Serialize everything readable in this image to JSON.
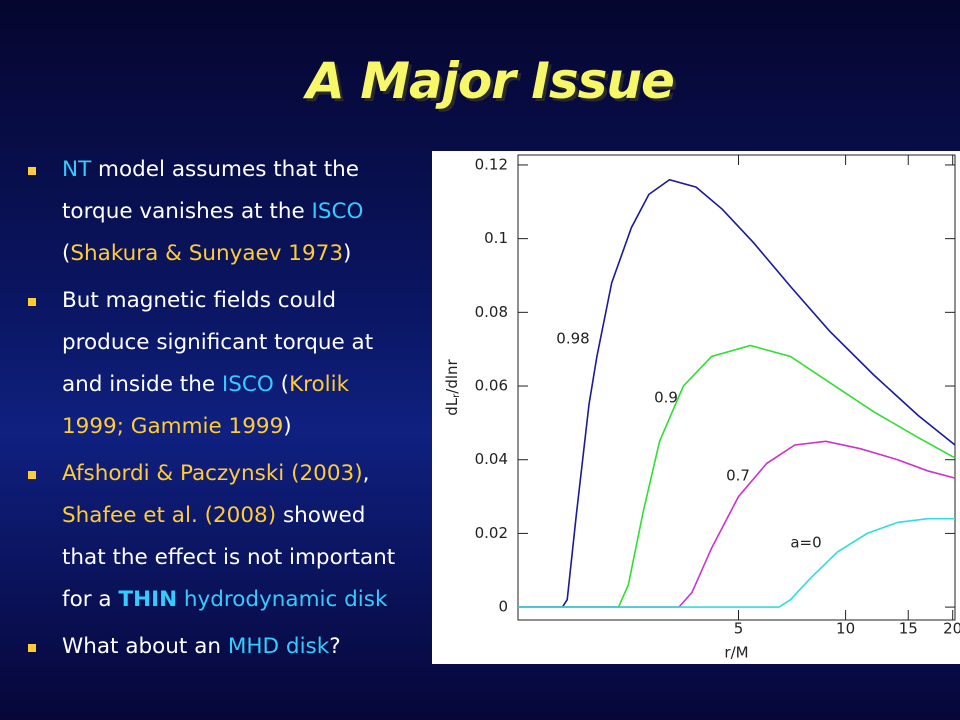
{
  "slide": {
    "title": "A Major Issue",
    "bullets": [
      {
        "lines": [
          [
            {
              "text": "NT",
              "color": "#33ccff"
            },
            {
              "text": " model assumes that the",
              "color": "#ffffff"
            }
          ],
          [
            {
              "text": "torque vanishes at the ",
              "color": "#ffffff"
            },
            {
              "text": "ISCO",
              "color": "#33ccff"
            }
          ],
          [
            {
              "text": "(",
              "color": "#ffffff"
            },
            {
              "text": "Shakura & Sunyaev 1973",
              "color": "#ffcc33"
            },
            {
              "text": ")",
              "color": "#ffffff"
            }
          ]
        ]
      },
      {
        "lines": [
          [
            {
              "text": "But magnetic fields could",
              "color": "#ffffff"
            }
          ],
          [
            {
              "text": "produce significant torque at",
              "color": "#ffffff"
            }
          ],
          [
            {
              "text": "and inside the ",
              "color": "#ffffff"
            },
            {
              "text": "ISCO",
              "color": "#33ccff"
            },
            {
              "text": " (",
              "color": "#ffffff"
            },
            {
              "text": "Krolik",
              "color": "#ffcc33"
            }
          ],
          [
            {
              "text": "1999; Gammie 1999",
              "color": "#ffcc33"
            },
            {
              "text": ")",
              "color": "#ffffff"
            }
          ]
        ]
      },
      {
        "lines": [
          [
            {
              "text": "Afshordi & Paczynski (2003)",
              "color": "#ffcc33"
            },
            {
              "text": ",",
              "color": "#ffffff"
            }
          ],
          [
            {
              "text": "Shafee et al. (2008)",
              "color": "#ffcc33"
            },
            {
              "text": " showed",
              "color": "#ffffff"
            }
          ],
          [
            {
              "text": "that the effect is not important",
              "color": "#ffffff"
            }
          ],
          [
            {
              "text": "for a ",
              "color": "#ffffff"
            },
            {
              "text": "THIN",
              "color": "#33ccff",
              "bold": true
            },
            {
              "text": " hydrodynamic disk",
              "color": "#33ccff"
            }
          ]
        ]
      },
      {
        "lines": [
          [
            {
              "text": "What about an ",
              "color": "#ffffff"
            },
            {
              "text": "MHD disk",
              "color": "#33ccff"
            },
            {
              "text": "?",
              "color": "#ffffff"
            }
          ]
        ]
      }
    ]
  },
  "chart_data": {
    "type": "line",
    "xlabel": "r/M",
    "ylabel": {
      "main": "dL",
      "sub": "r",
      "rest": "/dlnr"
    },
    "xscale": "log",
    "xlim": [
      1.2,
      20.3
    ],
    "ylim": [
      -0.0035,
      0.1227
    ],
    "xticks": [
      5,
      10,
      15,
      20
    ],
    "yticks": [
      0,
      0.02,
      0.04,
      0.06,
      0.08,
      0.1,
      0.12
    ],
    "grid": false,
    "series": [
      {
        "name": "0.98",
        "color": "#1a1a9a",
        "x": [
          1.2,
          1.6,
          1.65,
          1.75,
          1.9,
          2.0,
          2.2,
          2.5,
          2.8,
          3.2,
          3.8,
          4.5,
          5.5,
          7,
          9,
          12,
          16,
          20.3
        ],
        "values": [
          0,
          0,
          0.002,
          0.025,
          0.055,
          0.068,
          0.088,
          0.103,
          0.112,
          0.116,
          0.114,
          0.108,
          0.099,
          0.087,
          0.075,
          0.063,
          0.052,
          0.044
        ]
      },
      {
        "name": "0.9",
        "color": "#33dd33",
        "x": [
          1.2,
          2.3,
          2.45,
          2.7,
          3.0,
          3.5,
          4.2,
          5.4,
          7,
          9,
          12,
          16,
          20.3
        ],
        "values": [
          0,
          0,
          0.006,
          0.026,
          0.045,
          0.06,
          0.068,
          0.071,
          0.068,
          0.061,
          0.053,
          0.046,
          0.0405
        ]
      },
      {
        "name": "0.7",
        "color": "#cc33cc",
        "x": [
          1.2,
          3.4,
          3.7,
          4.2,
          5,
          6,
          7.2,
          8.8,
          11,
          14,
          17,
          20.3
        ],
        "values": [
          0,
          0,
          0.004,
          0.016,
          0.03,
          0.039,
          0.044,
          0.045,
          0.043,
          0.04,
          0.037,
          0.035
        ]
      },
      {
        "name": "a=0",
        "color": "#33dddd",
        "x": [
          1.2,
          6.5,
          7,
          8,
          9.5,
          11.5,
          14,
          17,
          20.3
        ],
        "values": [
          0,
          0,
          0.002,
          0.008,
          0.015,
          0.02,
          0.023,
          0.024,
          0.024
        ]
      }
    ]
  }
}
